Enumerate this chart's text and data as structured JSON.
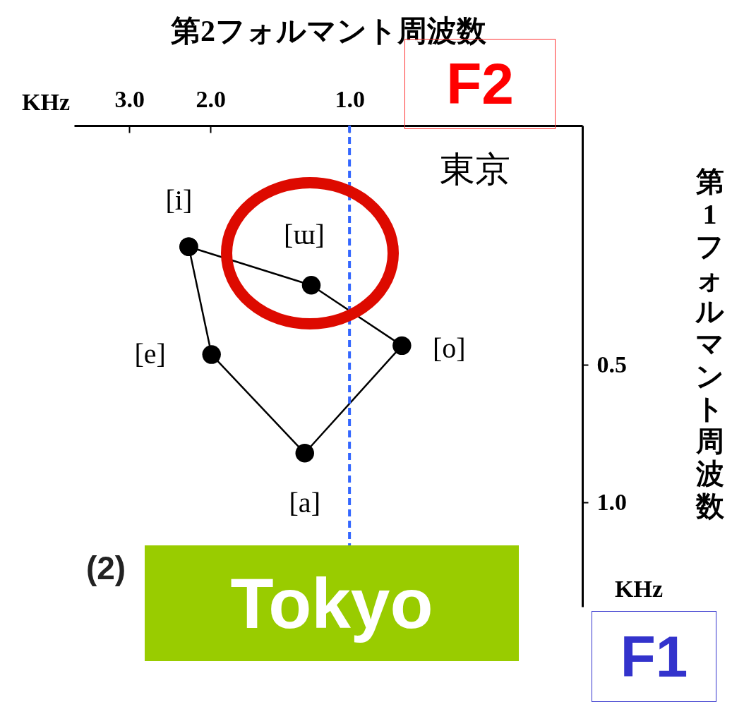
{
  "chart_data": {
    "type": "scatter",
    "xlabel": "第2フォルマント周波数",
    "ylabel": "第1フォルマント周波数",
    "x": [
      2.23,
      1.21,
      0.77,
      1.25,
      1.99,
      2.23
    ],
    "series": [
      {
        "color": "#000000",
        "values": [
          0.276,
          0.335,
          0.454,
          0.78,
          0.475,
          0.276
        ]
      },
      {
        "type": "line",
        "marker": "none",
        "line_style": "solid",
        "color": "#000000",
        "x": [
          2.23,
          1.21,
          0.77
        ],
        "values": [
          0.276,
          0.335,
          0.454
        ]
      },
      {
        "type": "line",
        "marker": "none",
        "line_style": "solid",
        "color": "#000000",
        "x": [
          0.77,
          1.25,
          1.99,
          2.23
        ],
        "values": [
          0.454,
          0.78,
          0.475,
          0.276
        ]
      }
    ],
    "marker": "circle",
    "log": "xy",
    "grid": false,
    "xlim": [
      3.95,
      0.313
    ],
    "xticks": [
      {
        "value": 3,
        "label": "3.0"
      },
      {
        "value": 2,
        "label": "2.0"
      },
      {
        "value": 1,
        "label": "1.0"
      }
    ],
    "ylim": [
      1.69,
      0.15
    ],
    "yticks": [
      0.5,
      {
        "value": 1,
        "label": "1.0"
      }
    ],
    "ref_lines": [
      {
        "axis": "x",
        "value": 1,
        "color": "#3366ff",
        "line_style": "dashed"
      }
    ],
    "annotations": [
      {
        "text": "[i]",
        "x": 2.23,
        "y": 0.276
      },
      {
        "text": "[ɯ]",
        "x": 1.21,
        "y": 0.335
      },
      {
        "text": "[o]",
        "x": 0.77,
        "y": 0.454
      },
      {
        "text": "[a]",
        "x": 1.25,
        "y": 0.78
      },
      {
        "text": "[e]",
        "x": 1.99,
        "y": 0.475
      },
      "KHz",
      "KHz",
      "東京",
      "(2)",
      "Tokyo",
      "F2",
      "F1"
    ]
  }
}
